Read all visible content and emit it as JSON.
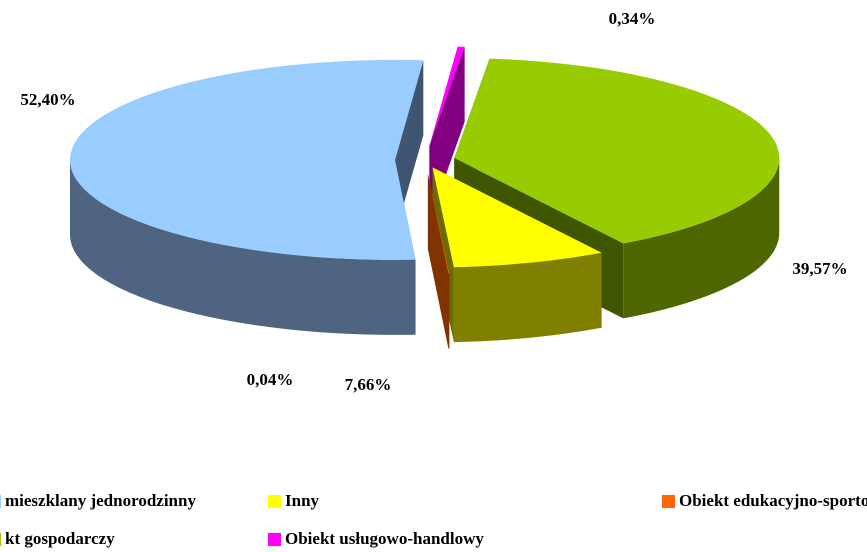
{
  "chart_data": {
    "type": "pie3d",
    "categories": [
      "mieszklany jednorodzinny",
      "kt gospodarczy",
      "Inny",
      "Obiekt usługowo-handlowy",
      "Obiekt edukacyjno-sporto"
    ],
    "values": [
      52.4,
      39.57,
      7.66,
      0.34,
      0.04
    ],
    "value_labels": [
      "52,40%",
      "39,57%",
      "7,66%",
      "0,34%",
      "0,04%"
    ],
    "colors": [
      "#99ccff",
      "#99cc00",
      "#ffff00",
      "#ff00ff",
      "#ff6600"
    ]
  }
}
